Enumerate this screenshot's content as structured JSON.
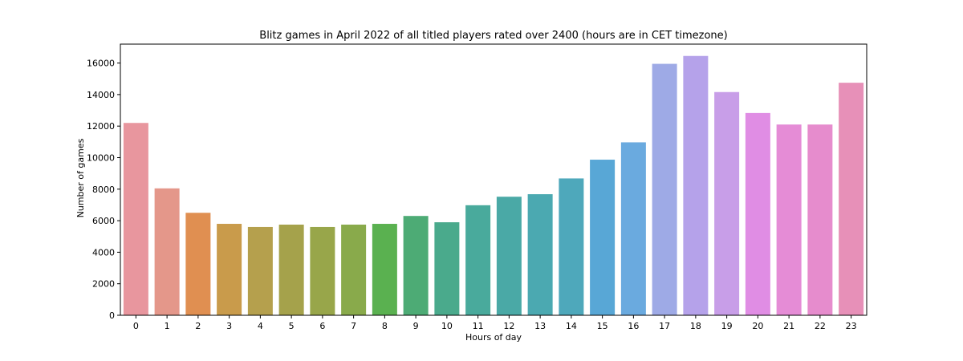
{
  "chart_data": {
    "type": "bar",
    "title": "Blitz games in April 2022 of all titled players rated over 2400 (hours are in CET timezone)",
    "xlabel": "Hours of day",
    "ylabel": "Number of games",
    "categories": [
      "0",
      "1",
      "2",
      "3",
      "4",
      "5",
      "6",
      "7",
      "8",
      "9",
      "10",
      "11",
      "12",
      "13",
      "14",
      "15",
      "16",
      "17",
      "18",
      "19",
      "20",
      "21",
      "22",
      "23"
    ],
    "values": [
      12200,
      8050,
      6500,
      5800,
      5600,
      5750,
      5600,
      5750,
      5800,
      6300,
      5900,
      6980,
      7520,
      7680,
      8680,
      9870,
      10970,
      15950,
      16450,
      14160,
      12830,
      12100,
      12100,
      14750
    ],
    "colors": [
      "#e8969e",
      "#e4978a",
      "#e08f51",
      "#c99b4b",
      "#b5a04d",
      "#a5a24b",
      "#98a64a",
      "#89aa4b",
      "#5ab150",
      "#4dab75",
      "#4aaa8c",
      "#49aa9c",
      "#4aa9a6",
      "#4ba9b1",
      "#4ea8bb",
      "#58a7d6",
      "#6aaadf",
      "#9eaae6",
      "#b5a2ea",
      "#c89ee8",
      "#e08de4",
      "#e58cd6",
      "#e68ccd",
      "#e790b8"
    ],
    "yticks": [
      0,
      2000,
      4000,
      6000,
      8000,
      10000,
      12000,
      14000,
      16000
    ],
    "ylim": [
      0,
      17200
    ],
    "grid": false
  }
}
